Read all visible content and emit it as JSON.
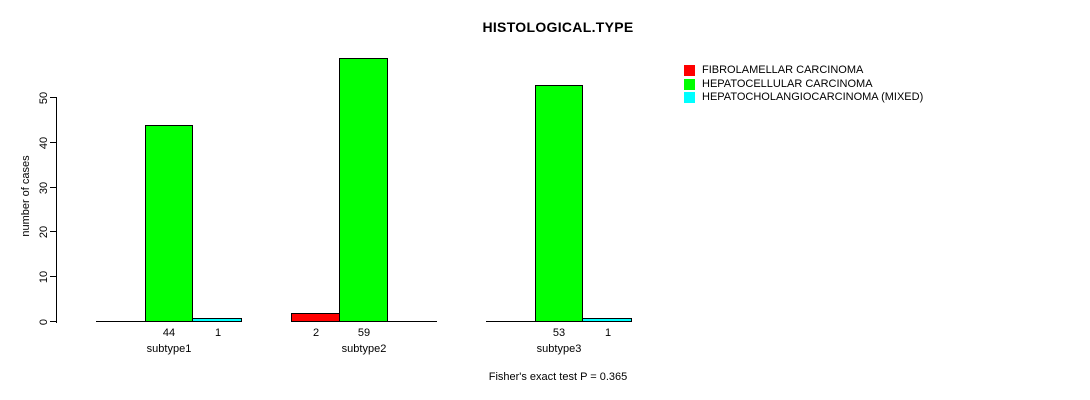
{
  "chart_data": {
    "type": "bar",
    "title": "HISTOLOGICAL.TYPE",
    "ylabel": "number of cases",
    "xlabel": "",
    "categories": [
      "subtype1",
      "subtype2",
      "subtype3"
    ],
    "series": [
      {
        "name": "FIBROLAMELLAR CARCINOMA",
        "color": "#FF0000",
        "values": [
          0,
          2,
          0
        ]
      },
      {
        "name": "HEPATOCELLULAR CARCINOMA",
        "color": "#00FF00",
        "values": [
          44,
          59,
          53
        ]
      },
      {
        "name": "HEPATOCHOLANGIOCARCINOMA (MIXED)",
        "color": "#00FFFF",
        "values": [
          1,
          0,
          1
        ]
      }
    ],
    "yticks": [
      0,
      10,
      20,
      30,
      40,
      50
    ],
    "ylim": [
      0,
      59
    ],
    "grid": false,
    "legend_position": "topright",
    "bar_value_labels_note": "counts printed under each bar, only for values > 0",
    "footnote": "Fisher's exact test P = 0.365"
  }
}
